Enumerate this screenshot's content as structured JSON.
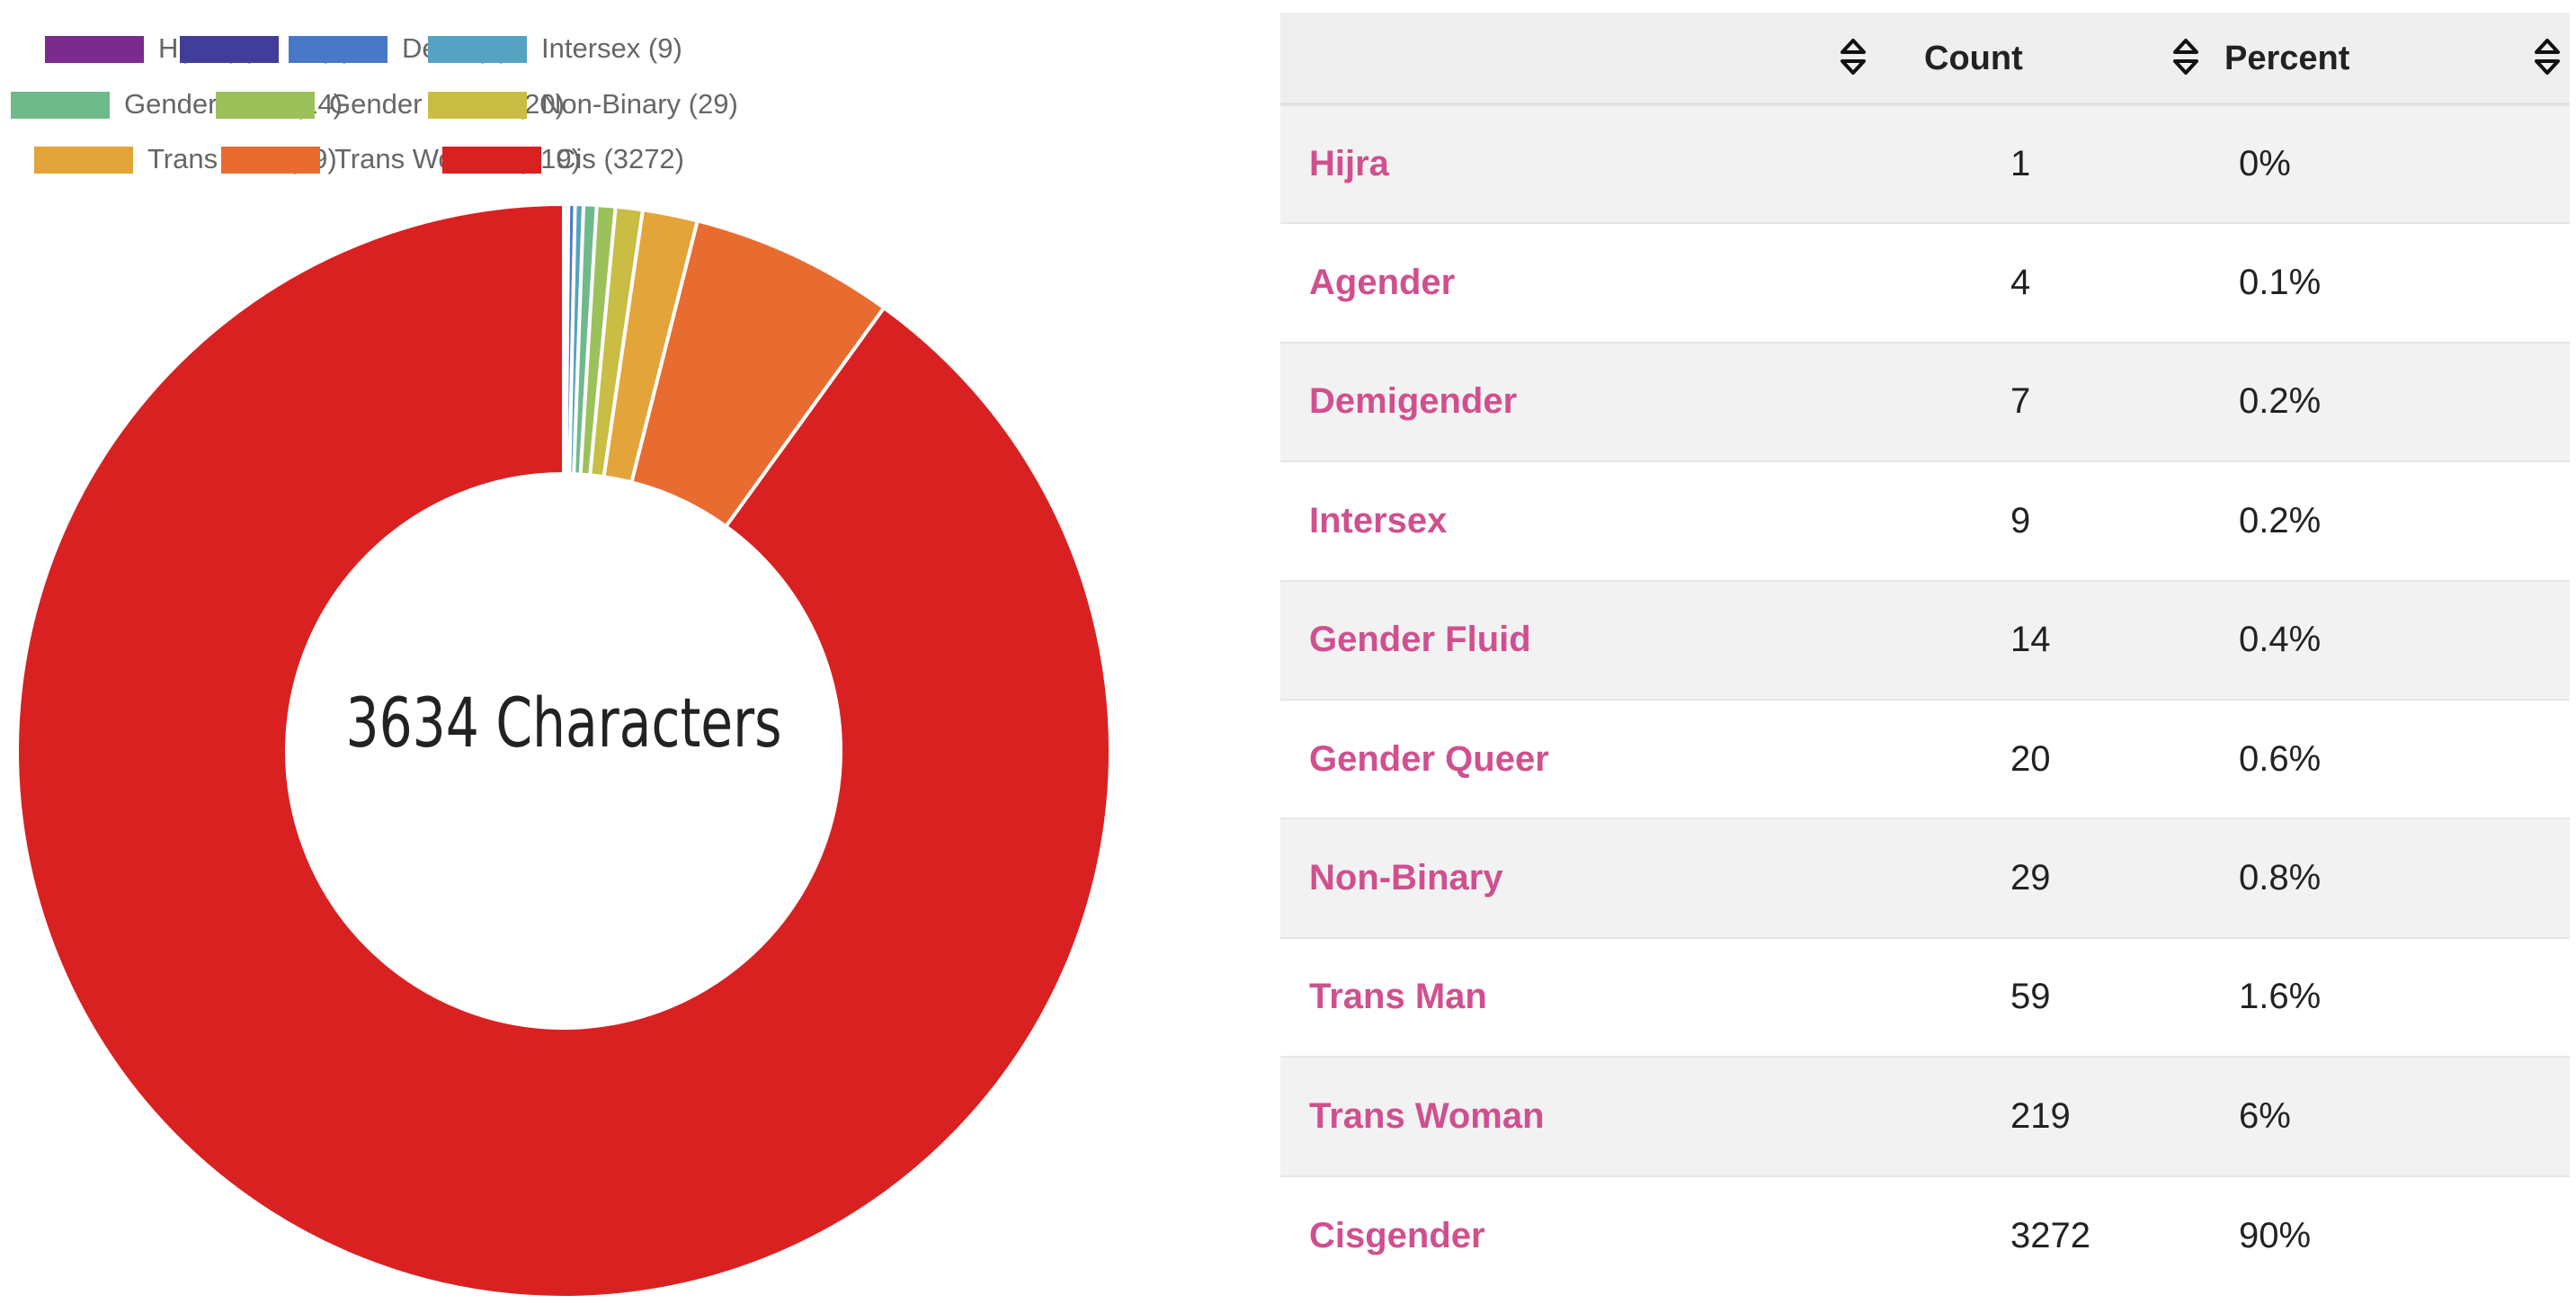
{
  "chart_data": {
    "type": "pie",
    "center_label": "3634 Characters",
    "legend_position": "top",
    "legend": [
      {
        "label": "Hijra (1)",
        "color": "#7b2a8e"
      },
      {
        "label": "A (4)",
        "color": "#433d9a"
      },
      {
        "label": "Demi (7)",
        "color": "#4a78c8"
      },
      {
        "label": "Intersex (9)",
        "color": "#55a2c2"
      },
      {
        "label": "Gender Fluid (14)",
        "color": "#6fba8b"
      },
      {
        "label": "Gender Queer (20)",
        "color": "#9cc15a"
      },
      {
        "label": "Non-Binary (29)",
        "color": "#c9bd44"
      },
      {
        "label": "Trans Man (59)",
        "color": "#e3a43a"
      },
      {
        "label": "Trans Woman (219)",
        "color": "#e86c2f"
      },
      {
        "label": "Cis (3272)",
        "color": "#d92121"
      }
    ],
    "values": [
      1,
      4,
      7,
      9,
      14,
      20,
      29,
      59,
      219,
      3272
    ]
  },
  "table": {
    "headers": [
      "",
      "Count",
      "Percent"
    ],
    "rows": [
      {
        "label": "Hijra",
        "count": "1",
        "percent": "0%"
      },
      {
        "label": "Agender",
        "count": "4",
        "percent": "0.1%"
      },
      {
        "label": "Demigender",
        "count": "7",
        "percent": "0.2%"
      },
      {
        "label": "Intersex",
        "count": "9",
        "percent": "0.2%"
      },
      {
        "label": "Gender Fluid",
        "count": "14",
        "percent": "0.4%"
      },
      {
        "label": "Gender Queer",
        "count": "20",
        "percent": "0.6%"
      },
      {
        "label": "Non-Binary",
        "count": "29",
        "percent": "0.8%"
      },
      {
        "label": "Trans Man",
        "count": "59",
        "percent": "1.6%"
      },
      {
        "label": "Trans Woman",
        "count": "219",
        "percent": "6%"
      },
      {
        "label": "Cisgender",
        "count": "3272",
        "percent": "90%"
      }
    ]
  }
}
